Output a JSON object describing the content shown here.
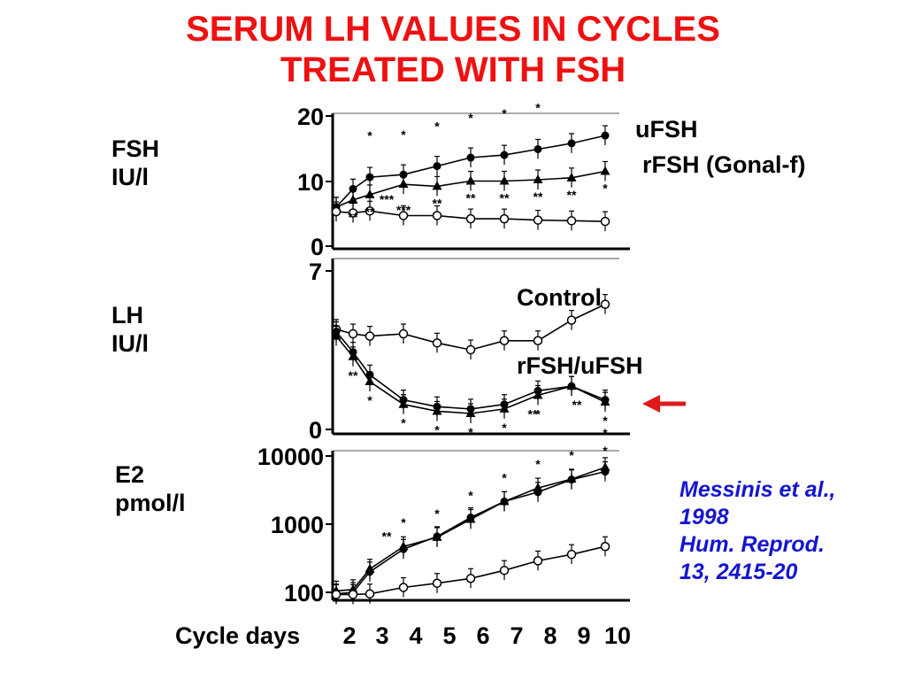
{
  "colors": {
    "title": "#ee1111",
    "citation": "#1515d0",
    "arrow": "#e01818",
    "ink": "#000000"
  },
  "title_lines": [
    "SERUM LH VALUES IN CYCLES",
    "TREATED WITH FSH"
  ],
  "panel_labels": {
    "fsh": [
      "FSH",
      "IU/l"
    ],
    "lh": [
      "LH",
      "IU/l"
    ],
    "e2": [
      "E2",
      "pmol/l"
    ]
  },
  "series_labels": {
    "ufsh": "uFSH",
    "rfsh": "rFSH (Gonal-f)",
    "control": "Control",
    "rfsh_ufsh": "rFSH/uFSH"
  },
  "x_axis": {
    "label": "Cycle days",
    "ticks": [
      "2",
      "3",
      "4",
      "5",
      "6",
      "7",
      "8",
      "9",
      "10"
    ]
  },
  "citation": [
    "Messinis et al.,",
    "1998",
    "Hum. Reprod.",
    "13, 2415-20"
  ],
  "chart_data": [
    {
      "type": "line",
      "panel": "fsh",
      "ylabel": "FSH IU/l",
      "ylim": [
        0,
        20
      ],
      "ytick_labels": [
        "0",
        "10",
        "20"
      ],
      "x": [
        2,
        2.5,
        3,
        4,
        5,
        6,
        7,
        8,
        9,
        10
      ],
      "series": [
        {
          "name": "uFSH",
          "marker": "filled-circle",
          "values": [
            6.0,
            8.8,
            10.6,
            11.0,
            12.3,
            13.6,
            14.0,
            14.9,
            15.8,
            17.0
          ]
        },
        {
          "name": "rFSH (Gonal-f)",
          "marker": "filled-triangle",
          "values": [
            6.0,
            7.1,
            7.9,
            9.5,
            9.2,
            10.0,
            10.0,
            10.2,
            10.5,
            11.5
          ]
        },
        {
          "name": "Control",
          "marker": "open-circle",
          "values": [
            5.3,
            5.1,
            5.4,
            4.7,
            4.7,
            4.2,
            4.2,
            4.0,
            3.9,
            3.8
          ]
        }
      ],
      "significance": [
        "**",
        "**",
        "***",
        "***",
        "**",
        "**",
        "**",
        "**",
        "**",
        "*",
        "*",
        "*",
        "*",
        "*",
        "*",
        "*"
      ]
    },
    {
      "type": "line",
      "panel": "lh",
      "ylabel": "LH IU/l",
      "ylim": [
        0,
        7
      ],
      "ytick_labels": [
        "0",
        "7"
      ],
      "x": [
        2,
        2.5,
        3,
        4,
        5,
        6,
        7,
        8,
        9,
        10
      ],
      "series": [
        {
          "name": "Control",
          "marker": "open-circle",
          "values": [
            4.4,
            4.2,
            4.1,
            4.2,
            3.8,
            3.5,
            3.9,
            3.9,
            4.8,
            5.5
          ]
        },
        {
          "name": "rFSH/uFSH",
          "marker": "filled-circle",
          "values": [
            4.3,
            3.4,
            2.4,
            1.3,
            1.0,
            0.9,
            1.1,
            1.7,
            1.9,
            1.3
          ]
        },
        {
          "name": "rFSH/uFSH (triangles)",
          "marker": "filled-triangle",
          "values": [
            4.1,
            3.2,
            2.1,
            1.1,
            0.8,
            0.7,
            0.9,
            1.5,
            1.9,
            1.2
          ]
        }
      ],
      "significance": [
        "**",
        "*",
        "*",
        "*",
        "*",
        "*",
        "*",
        "**",
        "**",
        "*"
      ]
    },
    {
      "type": "line",
      "panel": "e2",
      "ylabel": "E2 pmol/l",
      "yscale": "log",
      "ylim": [
        100,
        10000
      ],
      "ytick_labels": [
        "100",
        "1000",
        "10000"
      ],
      "x": [
        2,
        2.5,
        3,
        4,
        5,
        6,
        7,
        8,
        9,
        10
      ],
      "series": [
        {
          "name": "uFSH",
          "marker": "filled-circle",
          "values": [
            95,
            100,
            200,
            430,
            660,
            1250,
            2150,
            2950,
            4500,
            5900
          ]
        },
        {
          "name": "rFSH (Gonal-f)",
          "marker": "filled-triangle",
          "values": [
            105,
            110,
            220,
            470,
            640,
            1180,
            2150,
            3400,
            4600,
            6800
          ]
        },
        {
          "name": "Control",
          "marker": "open-circle",
          "values": [
            93,
            93,
            95,
            118,
            136,
            160,
            210,
            290,
            360,
            470
          ]
        }
      ],
      "significance": [
        "**",
        "*",
        "*",
        "*",
        "*",
        "*",
        "*",
        "*",
        "*"
      ]
    }
  ]
}
